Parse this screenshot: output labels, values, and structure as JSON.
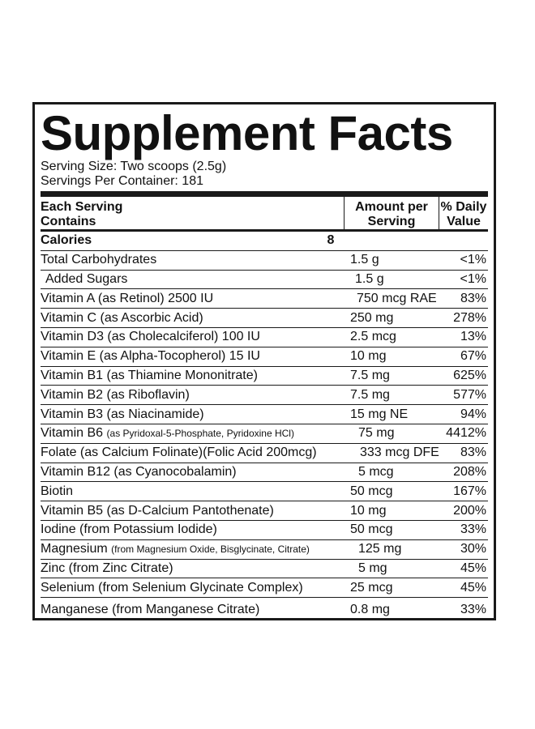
{
  "title": "Supplement Facts",
  "serving_size": "Serving Size: Two scoops (2.5g)",
  "servings_per_container": "Servings Per Container: 181",
  "header": {
    "col1_line1": "Each Serving",
    "col1_line2": "Contains",
    "col2_line1": "Amount per",
    "col2_line2": "Serving",
    "col3_line1": "% Daily",
    "col3_line2": "Value"
  },
  "rows": [
    {
      "name": "Calories",
      "sub": "",
      "amount": "8",
      "dv": ""
    },
    {
      "name": "Total Carbohydrates",
      "sub": "",
      "amount": "1.5 g",
      "dv": "<1%"
    },
    {
      "name": "Added Sugars",
      "sub": "",
      "amount": "1.5 g",
      "dv": "<1%"
    },
    {
      "name": "Vitamin A (as Retinol) 2500 IU",
      "sub": "",
      "amount": "750 mcg RAE",
      "dv": "83%"
    },
    {
      "name": "Vitamin C (as Ascorbic Acid)",
      "sub": "",
      "amount": "250 mg",
      "dv": "278%"
    },
    {
      "name": "Vitamin D3 (as Cholecalciferol) 100 IU",
      "sub": "",
      "amount": "2.5 mcg",
      "dv": "13%"
    },
    {
      "name": "Vitamin E (as Alpha-Tocopherol) 15 IU",
      "sub": "",
      "amount": "10 mg",
      "dv": "67%"
    },
    {
      "name": "Vitamin B1 (as Thiamine Mononitrate)",
      "sub": "",
      "amount": "7.5 mg",
      "dv": "625%"
    },
    {
      "name": "Vitamin B2 (as Riboflavin)",
      "sub": "",
      "amount": "7.5 mg",
      "dv": "577%"
    },
    {
      "name": "Vitamin B3 (as Niacinamide)",
      "sub": "",
      "amount": "15 mg NE",
      "dv": "94%"
    },
    {
      "name": "Vitamin B6 ",
      "sub": "(as Pyridoxal-5-Phosphate, Pyridoxine HCl)",
      "amount": "75 mg",
      "dv": "4412%"
    },
    {
      "name": "Folate (as Calcium Folinate)(Folic Acid 200mcg)",
      "sub": "",
      "amount": "333 mcg DFE",
      "dv": "83%"
    },
    {
      "name": "Vitamin B12 (as Cyanocobalamin)",
      "sub": "",
      "amount": "5 mcg",
      "dv": "208%"
    },
    {
      "name": "Biotin",
      "sub": "",
      "amount": "50 mcg",
      "dv": "167%"
    },
    {
      "name": "Vitamin B5 (as D-Calcium Pantothenate)",
      "sub": "",
      "amount": "10 mg",
      "dv": "200%"
    },
    {
      "name": "Iodine (from Potassium Iodide)",
      "sub": "",
      "amount": "50 mcg",
      "dv": "33%"
    },
    {
      "name": "Magnesium ",
      "sub": "(from Magnesium Oxide, Bisglycinate, Citrate)",
      "amount": "125 mg",
      "dv": "30%"
    },
    {
      "name": "Zinc (from Zinc Citrate)",
      "sub": "",
      "amount": "5 mg",
      "dv": "45%"
    },
    {
      "name": "Selenium (from Selenium Glycinate Complex)",
      "sub": "",
      "amount": "25 mcg",
      "dv": "45%"
    },
    {
      "name": "Manganese (from Manganese Citrate)",
      "sub": "",
      "amount": "0.8 mg",
      "dv": "33%"
    }
  ]
}
